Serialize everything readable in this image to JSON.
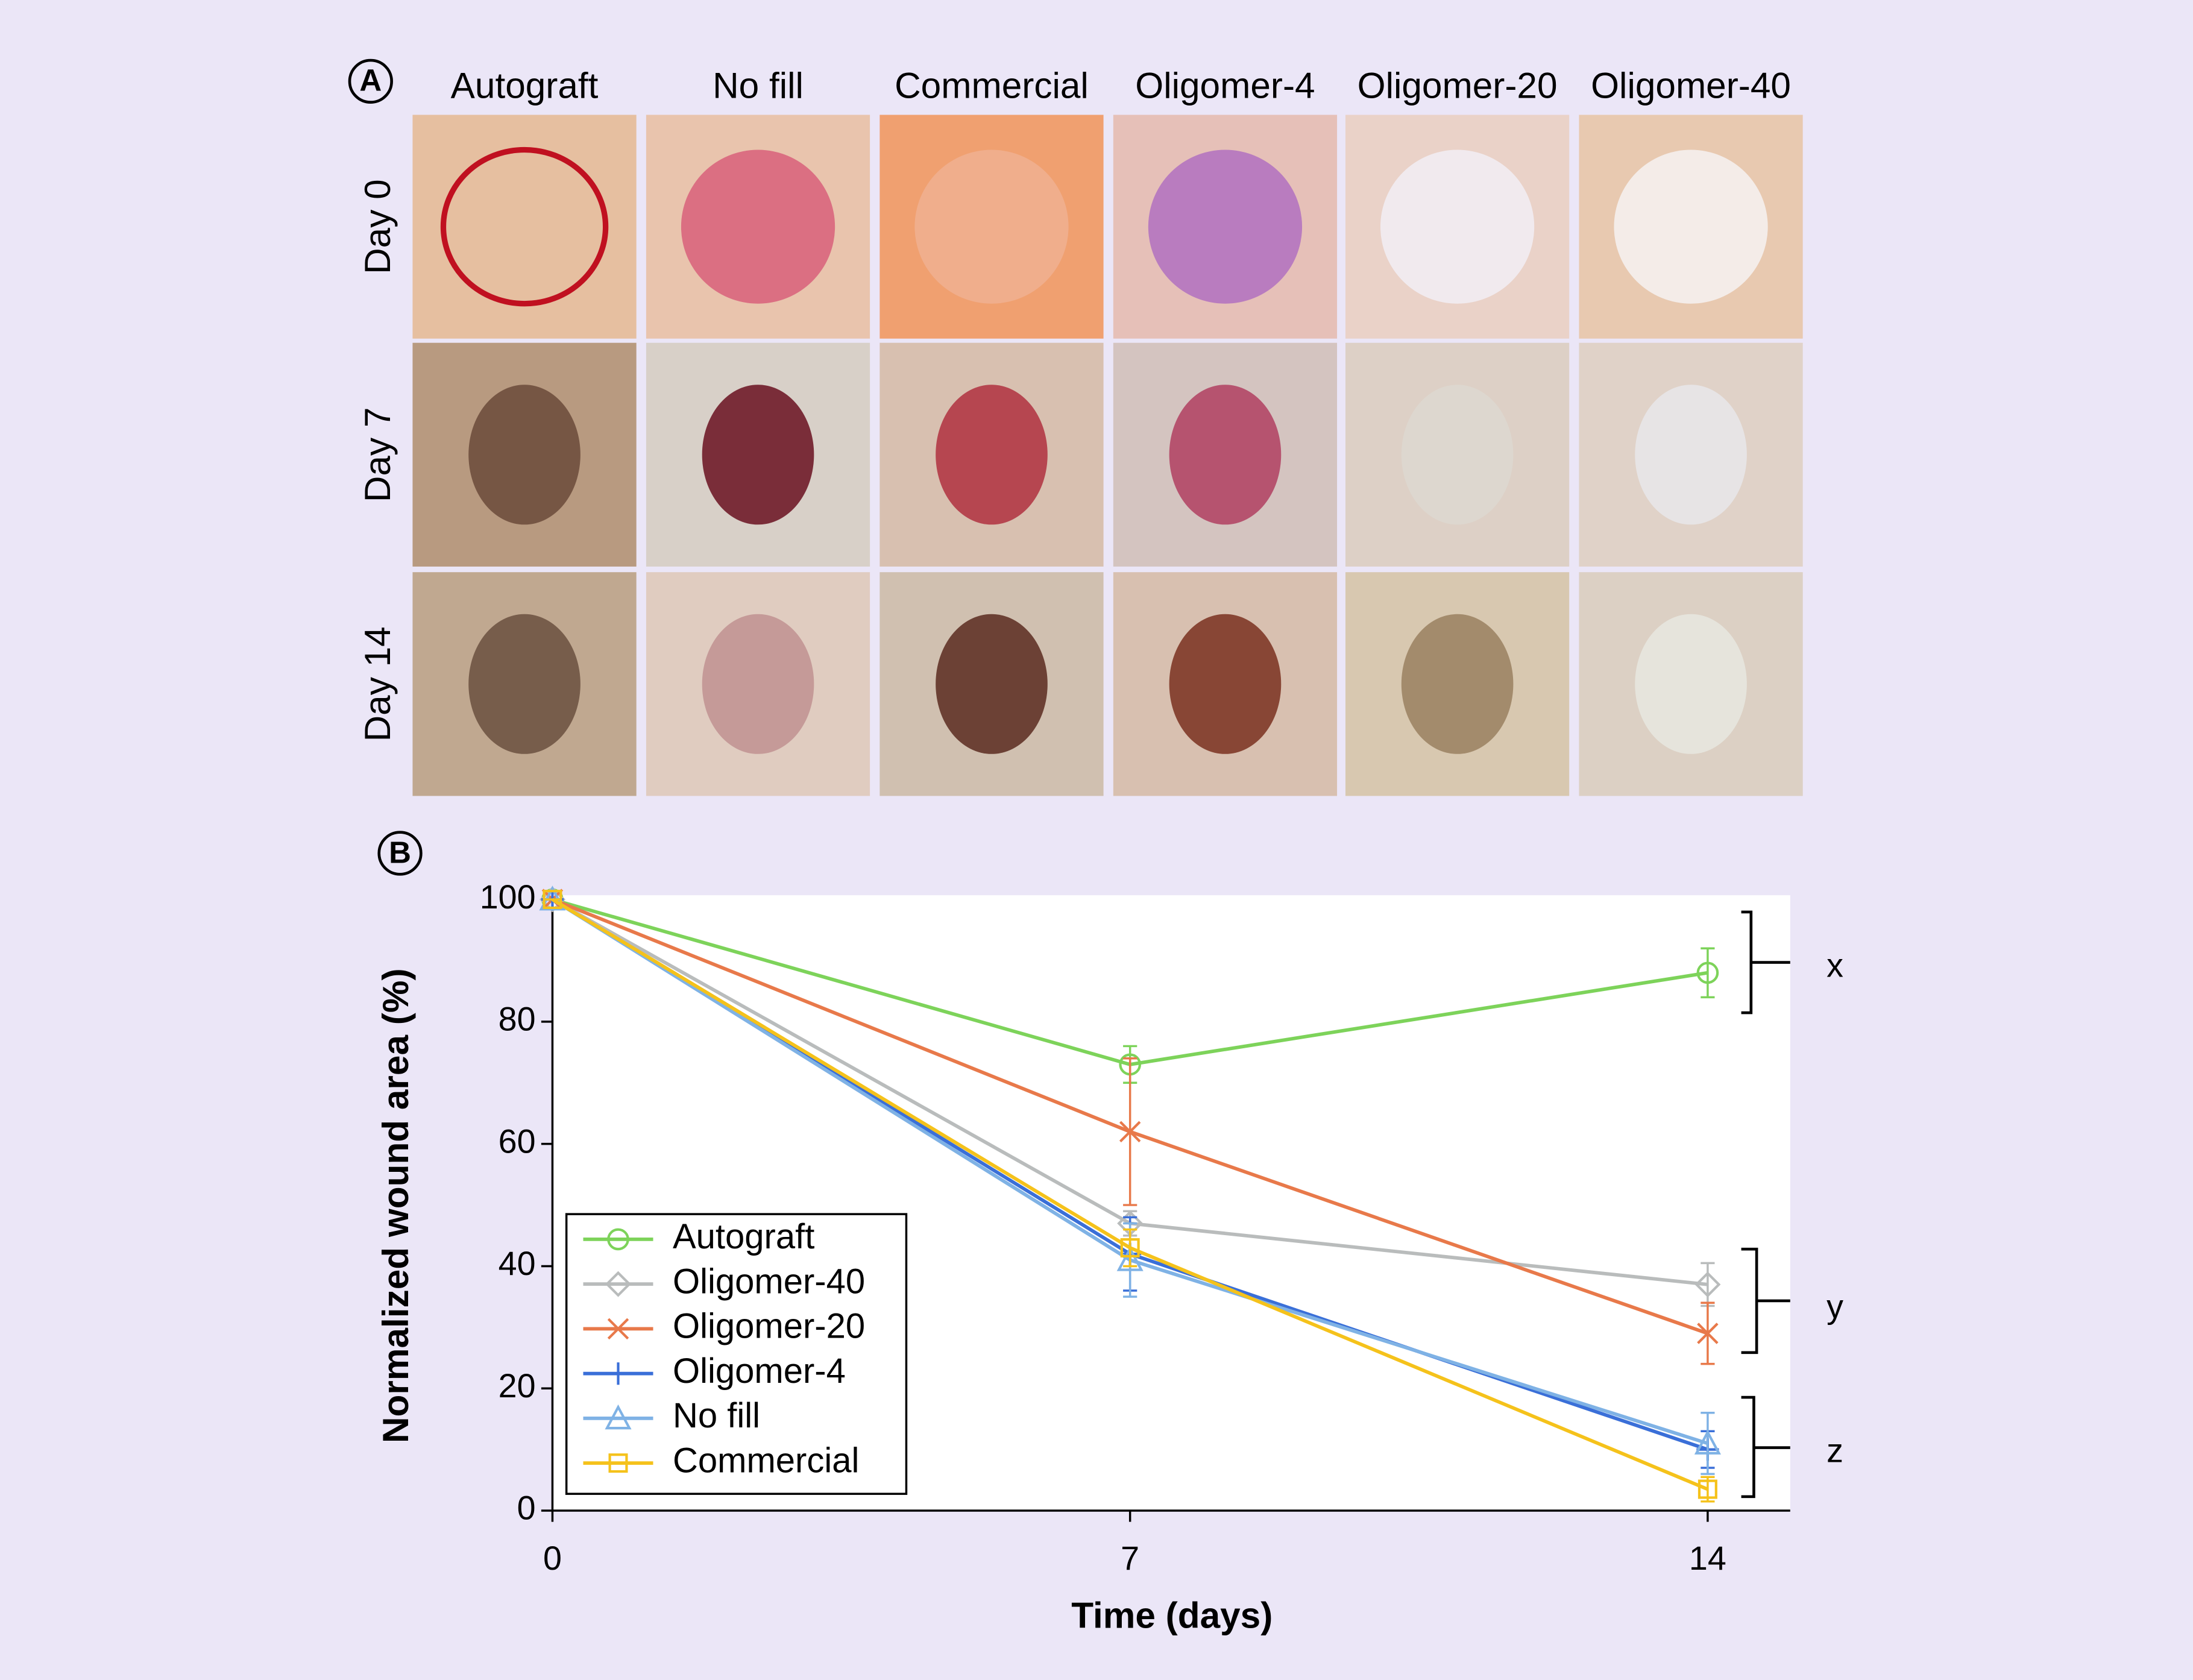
{
  "panel_a": {
    "label": "A",
    "columns": [
      "Autograft",
      "No fill",
      "Commercial",
      "Oligomer-4",
      "Oligomer-20",
      "Oligomer-40"
    ],
    "rows": [
      "Day 0",
      "Day 7",
      "Day 14"
    ]
  },
  "chart_data": {
    "type": "line",
    "panel_label": "B",
    "x_label": "Time (days)",
    "y_label": "Normalized wound area (%)",
    "x": [
      0,
      7,
      14
    ],
    "xlim": [
      0,
      15
    ],
    "xticks": [
      0,
      7,
      14
    ],
    "ylim": [
      0,
      100
    ],
    "yticks": [
      0,
      20,
      40,
      60,
      80,
      100
    ],
    "legend": "lower left",
    "series": [
      {
        "name": "Autograft",
        "color": "#7dd35a",
        "marker": "circle",
        "values": [
          100,
          73,
          88
        ],
        "errors": [
          0,
          3,
          4
        ]
      },
      {
        "name": "Oligomer-40",
        "color": "#b9bcbc",
        "marker": "diamond",
        "values": [
          100,
          47,
          37
        ],
        "errors": [
          0,
          2,
          3.5
        ]
      },
      {
        "name": "Oligomer-20",
        "color": "#e8794a",
        "marker": "x",
        "values": [
          100,
          62,
          29
        ],
        "errors": [
          0,
          12,
          5
        ]
      },
      {
        "name": "Oligomer-4",
        "color": "#3a6fd8",
        "marker": "plus",
        "values": [
          100,
          42,
          10
        ],
        "errors": [
          0,
          6,
          3
        ]
      },
      {
        "name": "No fill",
        "color": "#7fb2e5",
        "marker": "triangle",
        "values": [
          100,
          41,
          11
        ],
        "errors": [
          0,
          6,
          5
        ]
      },
      {
        "name": "Commercial",
        "color": "#f5c21b",
        "marker": "square",
        "values": [
          100,
          43,
          3.5
        ],
        "errors": [
          0,
          3,
          2
        ]
      }
    ],
    "annotations": [
      "x",
      "y",
      "z"
    ]
  }
}
